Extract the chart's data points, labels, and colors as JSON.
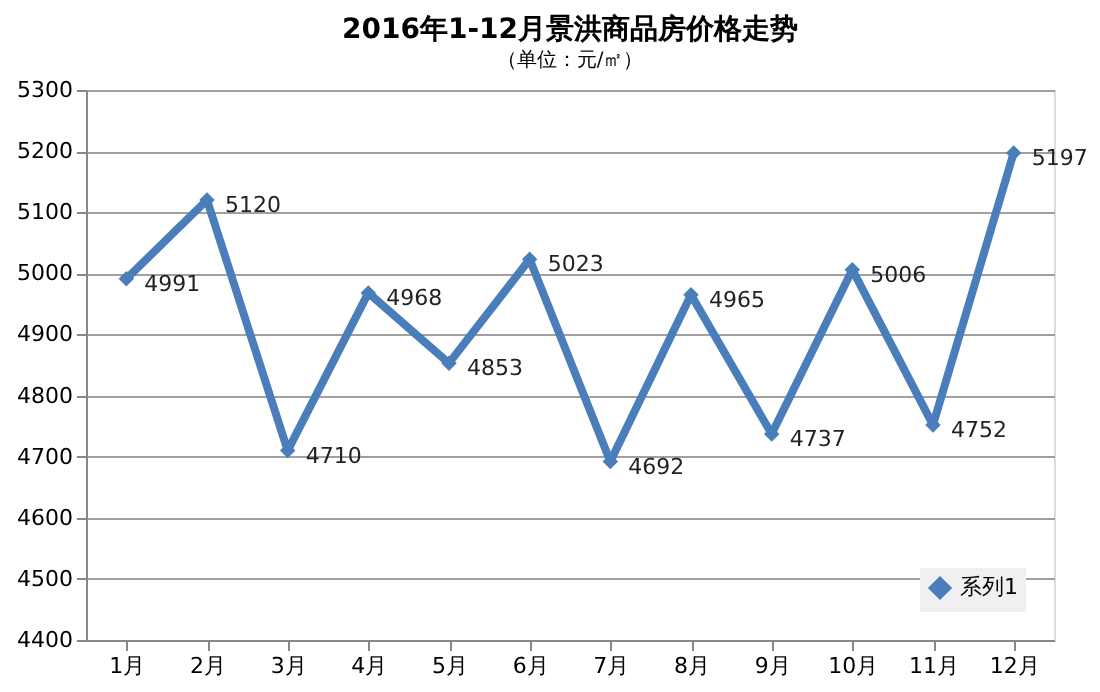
{
  "chart_data": {
    "type": "line",
    "title": "2016年1-12月景洪商品房价格走势",
    "subtitle": "（单位：元/㎡）",
    "categories": [
      "1月",
      "2月",
      "3月",
      "4月",
      "5月",
      "6月",
      "7月",
      "8月",
      "9月",
      "10月",
      "11月",
      "12月"
    ],
    "series": [
      {
        "name": "系列1",
        "color": "#4a7ebb",
        "values": [
          4991,
          5120,
          4710,
          4968,
          4853,
          5023,
          4692,
          4965,
          4737,
          5006,
          4752,
          5197
        ]
      }
    ],
    "ylim": [
      4400,
      5300
    ],
    "yticks": [
      4400,
      4500,
      4600,
      4700,
      4800,
      4900,
      5000,
      5100,
      5200,
      5300
    ],
    "grid": "y",
    "legend": "bottom right",
    "marker": "diamond",
    "line_style": "solid",
    "data_labels": true
  }
}
